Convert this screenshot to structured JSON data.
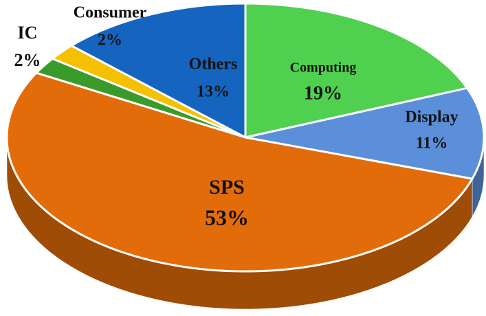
{
  "chart_data": {
    "type": "pie",
    "categories": [
      "Computing",
      "Display",
      "SPS",
      "IC",
      "Consumer",
      "Others"
    ],
    "values": [
      19,
      11,
      53,
      2,
      2,
      13
    ],
    "value_labels": [
      "19%",
      "11%",
      "53%",
      "2%",
      "2%",
      "13%"
    ],
    "colors": [
      "#4fd04f",
      "#5b8fd9",
      "#e36c0a",
      "#3a9a2a",
      "#f5c000",
      "#1565c0"
    ]
  }
}
